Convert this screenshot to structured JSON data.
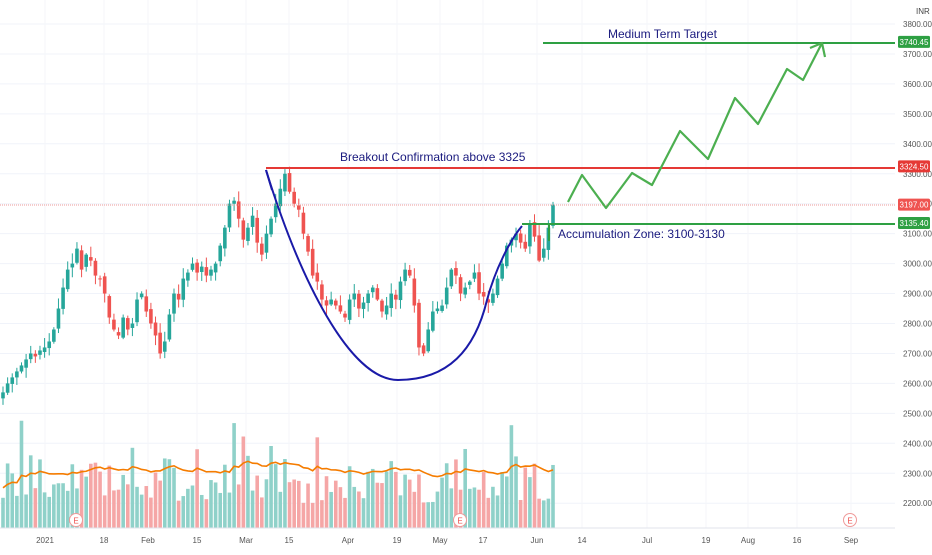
{
  "chart_data": {
    "type": "candlestick",
    "currency_label": "INR",
    "y_ticks": [
      2200,
      2300,
      2400,
      2500,
      2600,
      2700,
      2800,
      2900,
      3000,
      3100,
      3200,
      3300,
      3400,
      3500,
      3600,
      3700,
      3800
    ],
    "y_tick_labels": [
      "2200.00",
      "2300.00",
      "2400.00",
      "2500.00",
      "2600.00",
      "2700.00",
      "2800.00",
      "2900.00",
      "3000.00",
      "3100.00",
      "3200.00",
      "3300.00",
      "3400.00",
      "3500.00",
      "3600.00",
      "3700.00",
      "3800.00"
    ],
    "x_tick_labels": [
      "2021",
      "18",
      "Feb",
      "15",
      "Mar",
      "15",
      "Apr",
      "19",
      "May",
      "17",
      "Jun",
      "14",
      "Jul",
      "19",
      "Aug",
      "16",
      "Sep"
    ],
    "price_labels": [
      {
        "value": 3740.45,
        "text": "3740.45",
        "color": "#2ea043"
      },
      {
        "value": 3324.5,
        "text": "3324.50",
        "color": "#e53935"
      },
      {
        "value": 3197.0,
        "text": "3197.00",
        "color": "#ef5350"
      },
      {
        "value": 3135.4,
        "text": "3135.40",
        "color": "#2ea043"
      }
    ],
    "annotations": {
      "target": "Medium Term Target",
      "breakout": "Breakout Confirmation above 3325",
      "accumulation": "Accumulation Zone: 3100-3130"
    },
    "earnings_marker": "E",
    "closes": [
      2570,
      2600,
      2620,
      2640,
      2660,
      2680,
      2700,
      2690,
      2710,
      2720,
      2740,
      2780,
      2850,
      2920,
      2980,
      3000,
      3050,
      2980,
      3030,
      3010,
      2960,
      2950,
      2900,
      2820,
      2780,
      2760,
      2820,
      2780,
      2800,
      2880,
      2900,
      2840,
      2800,
      2760,
      2700,
      2740,
      2830,
      2900,
      2880,
      2950,
      2970,
      3000,
      2970,
      2990,
      2960,
      2980,
      3000,
      3060,
      3120,
      3200,
      3210,
      3150,
      3080,
      3120,
      3160,
      3070,
      3030,
      3100,
      3150,
      3200,
      3250,
      3300,
      3240,
      3200,
      3180,
      3100,
      3040,
      2960,
      2940,
      2880,
      2860,
      2880,
      2860,
      2840,
      2820,
      2880,
      2900,
      2850,
      2870,
      2900,
      2920,
      2880,
      2840,
      2860,
      2900,
      2880,
      2940,
      2980,
      2960,
      2860,
      2720,
      2700,
      2780,
      2840,
      2850,
      2860,
      2920,
      2980,
      2960,
      2900,
      2920,
      2940,
      2970,
      2900,
      2890,
      2870,
      2900,
      2950,
      3000,
      3060,
      3080,
      3100,
      3070,
      3050,
      3130,
      3090,
      3010,
      3050,
      3120,
      3197
    ],
    "volume_avg_color": "#f57c00",
    "bull_color": "#26a69a",
    "bear_color": "#ef5350"
  }
}
